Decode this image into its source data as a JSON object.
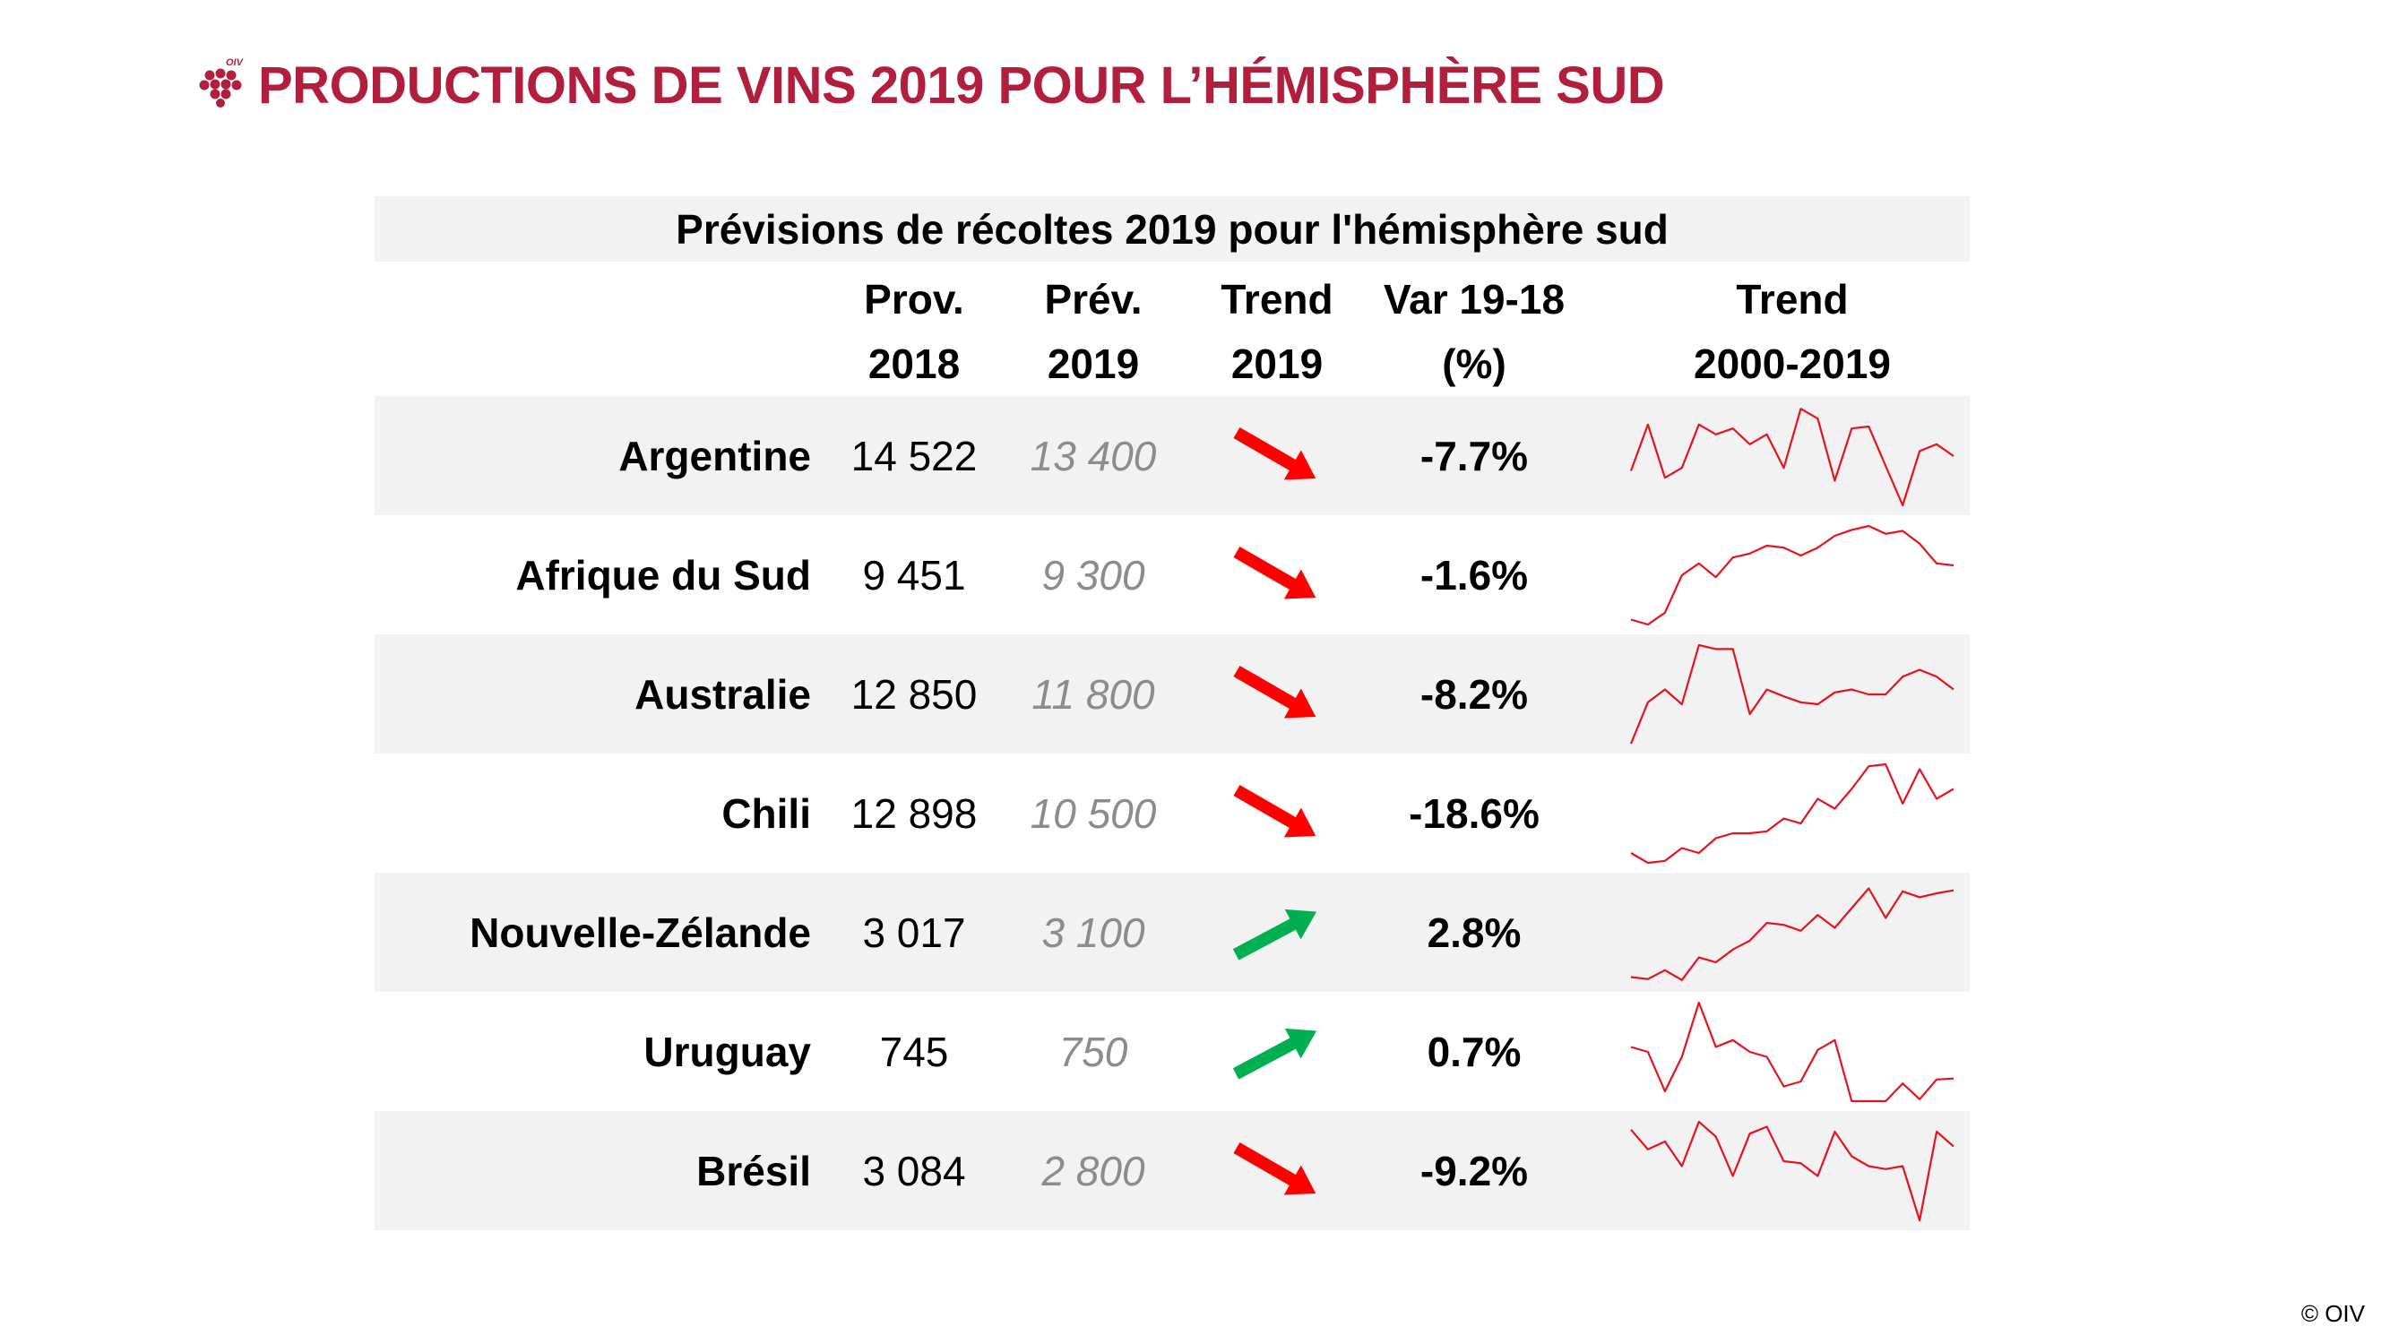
{
  "header": {
    "title": "PRODUCTIONS DE VINS 2019 POUR L’HÉMISPHÈRE SUD",
    "logo_text": "OIV",
    "brand_color": "#b11f3d"
  },
  "table": {
    "caption": "Prévisions de récoltes 2019  pour l'hémisphère sud",
    "columns": [
      {
        "line1": "Prov.",
        "line2": "2018"
      },
      {
        "line1": "Prév.",
        "line2": "2019"
      },
      {
        "line1": "Trend",
        "line2": "2019"
      },
      {
        "line1": "Var 19-18",
        "line2": "(%)"
      },
      {
        "line1": "Trend",
        "line2": "2000-2019"
      }
    ],
    "rows": [
      {
        "country": "Argentine",
        "prov_2018": "14 522",
        "prev_2019": "13 400",
        "trend": "down",
        "var": "-7.7%",
        "spark": [
          0.35,
          0.82,
          0.28,
          0.38,
          0.82,
          0.72,
          0.78,
          0.62,
          0.72,
          0.38,
          0.98,
          0.88,
          0.25,
          0.78,
          0.8,
          0.4,
          0.0,
          0.55,
          0.62,
          0.5
        ]
      },
      {
        "country": "Afrique du Sud",
        "prov_2018": "9 451",
        "prev_2019": "9 300",
        "trend": "down",
        "var": "-1.6%",
        "spark": [
          0.05,
          0.0,
          0.12,
          0.5,
          0.62,
          0.48,
          0.68,
          0.72,
          0.8,
          0.78,
          0.7,
          0.78,
          0.9,
          0.96,
          1.0,
          0.92,
          0.95,
          0.82,
          0.62,
          0.6
        ]
      },
      {
        "country": "Australie",
        "prov_2018": "12 850",
        "prev_2019": "11 800",
        "trend": "down",
        "var": "-8.2%",
        "spark": [
          0.0,
          0.42,
          0.55,
          0.4,
          1.0,
          0.96,
          0.96,
          0.3,
          0.55,
          0.48,
          0.42,
          0.4,
          0.52,
          0.55,
          0.5,
          0.5,
          0.68,
          0.75,
          0.68,
          0.55
        ]
      },
      {
        "country": "Chili",
        "prov_2018": "12 898",
        "prev_2019": "10 500",
        "trend": "down",
        "var": "-18.6%",
        "spark": [
          0.1,
          0.0,
          0.02,
          0.15,
          0.1,
          0.25,
          0.3,
          0.3,
          0.32,
          0.45,
          0.4,
          0.65,
          0.55,
          0.75,
          0.98,
          1.0,
          0.6,
          0.95,
          0.65,
          0.75
        ]
      },
      {
        "country": "Nouvelle-Zélande",
        "prov_2018": "3 017",
        "prev_2019": "3 100",
        "trend": "up",
        "var": "2.8%",
        "spark": [
          0.05,
          0.03,
          0.12,
          0.02,
          0.25,
          0.2,
          0.33,
          0.42,
          0.6,
          0.58,
          0.52,
          0.68,
          0.55,
          0.75,
          0.95,
          0.65,
          0.92,
          0.86,
          0.9,
          0.93
        ]
      },
      {
        "country": "Uruguay",
        "prov_2018": "745",
        "prev_2019": "750",
        "trend": "up",
        "var": "0.7%",
        "spark": [
          0.55,
          0.5,
          0.1,
          0.45,
          1.0,
          0.55,
          0.62,
          0.5,
          0.45,
          0.15,
          0.2,
          0.52,
          0.62,
          0.0,
          0.0,
          0.0,
          0.18,
          0.02,
          0.22,
          0.23
        ]
      },
      {
        "country": "Brésil",
        "prov_2018": "3 084",
        "prev_2019": "2 800",
        "trend": "down",
        "var": "-9.2%",
        "spark": [
          0.92,
          0.72,
          0.8,
          0.55,
          1.0,
          0.85,
          0.45,
          0.88,
          0.95,
          0.6,
          0.58,
          0.45,
          0.9,
          0.65,
          0.55,
          0.52,
          0.55,
          0.0,
          0.9,
          0.75
        ]
      }
    ]
  },
  "trend_colors": {
    "down": "#ff0000",
    "up": "#00b050"
  },
  "spark_color": "#e8121b",
  "copyright": "© OIV"
}
